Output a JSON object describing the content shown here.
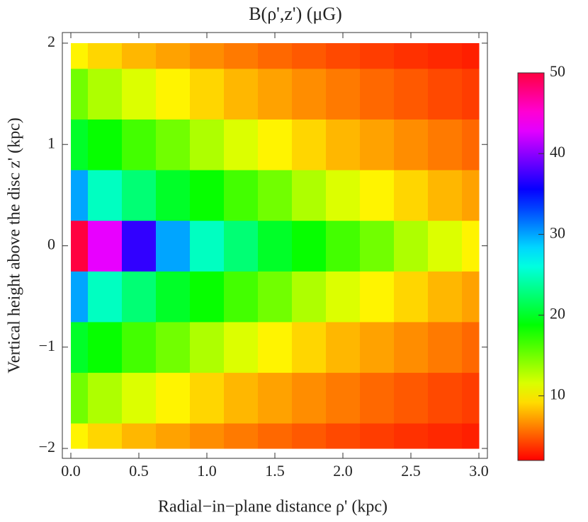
{
  "chart_data": {
    "type": "heatmap",
    "title": "B(ρ',z') (μG)",
    "x_label": "Radial−in−plane distance ρ' (kpc)",
    "y_label": "Vertical height above the disc z' (kpc)",
    "x": [
      0,
      0.25,
      0.5,
      0.75,
      1,
      1.25,
      1.5,
      1.75,
      2,
      2.25,
      2.5,
      2.75,
      3
    ],
    "y": [
      -2,
      -1.5,
      -1,
      -0.5,
      0,
      0.5,
      1,
      1.5,
      2
    ],
    "z": [
      [
        10,
        9,
        8,
        7.3,
        6.6,
        6,
        5.4,
        4.9,
        4.4,
        4,
        3.6,
        3.3,
        3
      ],
      [
        15,
        13,
        11.5,
        10,
        9,
        8,
        7.3,
        6.6,
        6,
        5.4,
        4.9,
        4.4,
        4
      ],
      [
        20,
        18.5,
        16.5,
        15,
        13,
        11.5,
        10,
        9,
        8,
        7.3,
        6.6,
        6,
        5.4
      ],
      [
        30,
        25,
        22.5,
        20,
        18.5,
        16.5,
        15,
        13,
        11.5,
        10,
        9,
        8,
        7.3
      ],
      [
        50,
        43,
        37,
        30,
        25,
        22.5,
        20,
        18.5,
        16.5,
        15,
        13,
        11.5,
        10
      ],
      [
        30,
        25,
        22.5,
        20,
        18.5,
        16.5,
        15,
        13,
        11.5,
        10,
        9,
        8,
        7.3
      ],
      [
        20,
        18.5,
        16.5,
        15,
        13,
        11.5,
        10,
        9,
        8,
        7.3,
        6.6,
        6,
        5.4
      ],
      [
        15,
        13,
        11.5,
        10,
        9,
        8,
        7.3,
        6.6,
        6,
        5.4,
        4.9,
        4.4,
        4
      ],
      [
        10,
        9,
        8,
        7.3,
        6.6,
        6,
        5.4,
        4.9,
        4.4,
        4,
        3.6,
        3.3,
        3
      ]
    ],
    "xlim": [
      0,
      3
    ],
    "ylim": [
      -2,
      2
    ],
    "zlim": [
      2,
      50
    ],
    "xticks": [
      {
        "value": 0,
        "label": "0.0"
      },
      {
        "value": 0.5,
        "label": "0.5"
      },
      {
        "value": 1,
        "label": "1.0"
      },
      {
        "value": 1.5,
        "label": "1.5"
      },
      {
        "value": 2,
        "label": "2.0"
      },
      {
        "value": 2.5,
        "label": "2.5"
      },
      {
        "value": 3,
        "label": "3.0"
      }
    ],
    "yticks": [
      {
        "value": -2,
        "label": "−2"
      },
      {
        "value": -1,
        "label": "−1"
      },
      0,
      1,
      2
    ],
    "zticks": [
      10,
      20,
      30,
      40,
      50
    ]
  }
}
